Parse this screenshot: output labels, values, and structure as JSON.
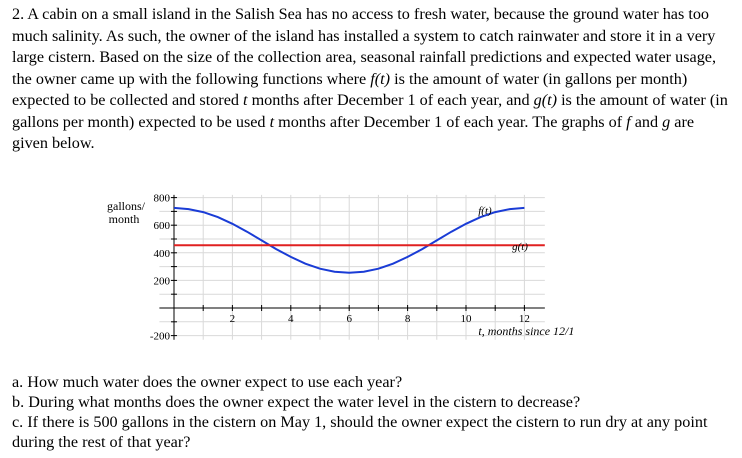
{
  "problem": {
    "number": "2.",
    "s1": "A cabin on a small island in the Salish Sea has no access to fresh water, because the ground water has too much salinity. As such, the owner of the island has installed a system to catch rainwater and store it in a very large cistern. Based on the size of the collection area, seasonal rainfall predictions and expected water usage, the owner came up with the following functions where",
    "f_of_t": "f(t)",
    "s2": "is the amount of water (in gallons per month) expected to be collected and stored",
    "t1": "t",
    "s3": "months after December 1 of each year, and",
    "g_of_t": "g(t)",
    "s4": "is the amount of water (in gallons per month) expected to be used",
    "t2": "t",
    "s5": "months after December 1 of each year. The graphs of",
    "f": "f",
    "and": "and",
    "g": "g",
    "s6": "are given below."
  },
  "chart_data": {
    "type": "line",
    "ylabel_top": "gallons/",
    "ylabel_bottom": "month",
    "xlabel": "t, months since 12/1",
    "x_ticks": [
      "2",
      "4",
      "6",
      "8",
      "10",
      "12"
    ],
    "y_ticks": [
      "800",
      "600",
      "400",
      "200",
      "-200"
    ],
    "xlim": [
      -0.5,
      12.7
    ],
    "ylim": [
      -230,
      820
    ],
    "series": [
      {
        "name": "f(t)",
        "color": "#1a3cd6",
        "x": [
          0,
          0.5,
          1,
          1.5,
          2,
          2.5,
          3,
          3.5,
          4,
          4.5,
          5,
          5.5,
          6,
          6.5,
          7,
          7.5,
          8,
          8.5,
          9,
          9.5,
          10,
          10.5,
          11,
          11.5,
          12
        ],
        "y": [
          725,
          717,
          695,
          659,
          610,
          553,
          490,
          427,
          370,
          321,
          285,
          263,
          255,
          263,
          285,
          321,
          370,
          427,
          490,
          553,
          610,
          659,
          695,
          717,
          725
        ]
      },
      {
        "name": "g(t)",
        "color": "#e02020",
        "x": [
          0,
          12.7
        ],
        "y": [
          455,
          455
        ]
      }
    ]
  },
  "questions": {
    "a": "a. How much water does the owner expect to use each year?",
    "b": "b. During what months does the owner expect the water level in the cistern to decrease?",
    "c": "c. If there is 500 gallons in the cistern on May 1, should the owner expect the cistern to run dry at any point during the rest of that year?"
  }
}
